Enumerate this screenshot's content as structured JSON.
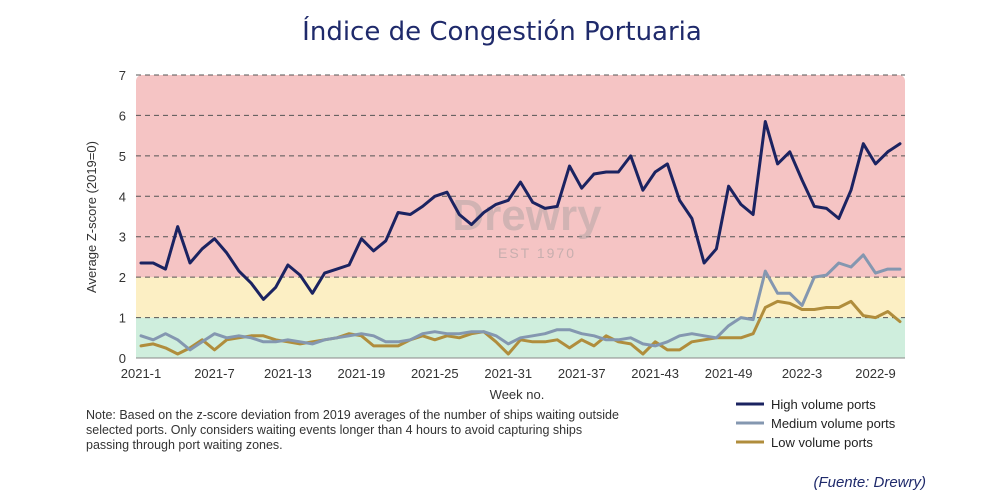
{
  "chart_data": {
    "type": "line",
    "title": "Índice de Congestión Portuaria",
    "xlabel": "Week no.",
    "ylabel": "Average Z-score (2019=0)",
    "ylim": [
      0,
      7
    ],
    "yticks": [
      0,
      1,
      2,
      3,
      4,
      5,
      6,
      7
    ],
    "xticks": [
      {
        "label": "2021-1",
        "index": 0
      },
      {
        "label": "2021-7",
        "index": 6
      },
      {
        "label": "2021-13",
        "index": 12
      },
      {
        "label": "2021-19",
        "index": 18
      },
      {
        "label": "2021-25",
        "index": 24
      },
      {
        "label": "2021-31",
        "index": 30
      },
      {
        "label": "2021-37",
        "index": 36
      },
      {
        "label": "2021-43",
        "index": 42
      },
      {
        "label": "2021-49",
        "index": 48
      },
      {
        "label": "2022-3",
        "index": 54
      },
      {
        "label": "2022-9",
        "index": 60
      }
    ],
    "bands": [
      {
        "from": 0,
        "to": 1,
        "color": "#cfeedd"
      },
      {
        "from": 1,
        "to": 2,
        "color": "#fcefc4"
      },
      {
        "from": 2,
        "to": 7,
        "color": "#f5c4c4"
      }
    ],
    "watermark": {
      "brand": "Drewry",
      "sub": "EST 1970"
    },
    "series": [
      {
        "name": "High volume ports",
        "color": "#1b2361",
        "values": [
          2.35,
          2.35,
          2.2,
          3.25,
          2.35,
          2.7,
          2.95,
          2.6,
          2.15,
          1.85,
          1.45,
          1.75,
          2.3,
          2.05,
          1.6,
          2.1,
          2.2,
          2.3,
          2.95,
          2.65,
          2.9,
          3.6,
          3.55,
          3.75,
          4.0,
          4.1,
          3.55,
          3.3,
          3.6,
          3.8,
          3.9,
          4.35,
          3.85,
          3.7,
          3.75,
          4.75,
          4.2,
          4.55,
          4.6,
          4.6,
          5.0,
          4.15,
          4.6,
          4.8,
          3.9,
          3.45,
          2.35,
          2.7,
          4.25,
          3.8,
          3.55,
          5.85,
          4.8,
          5.1,
          4.4,
          3.75,
          3.7,
          3.45,
          4.15,
          5.3,
          4.8,
          5.1,
          5.3
        ]
      },
      {
        "name": "Medium volume ports",
        "color": "#8497b0",
        "values": [
          0.55,
          0.45,
          0.6,
          0.45,
          0.2,
          0.4,
          0.6,
          0.5,
          0.55,
          0.5,
          0.4,
          0.4,
          0.45,
          0.4,
          0.35,
          0.45,
          0.5,
          0.55,
          0.6,
          0.55,
          0.4,
          0.4,
          0.45,
          0.6,
          0.65,
          0.6,
          0.6,
          0.65,
          0.65,
          0.55,
          0.35,
          0.5,
          0.55,
          0.6,
          0.7,
          0.7,
          0.6,
          0.55,
          0.45,
          0.45,
          0.5,
          0.35,
          0.3,
          0.4,
          0.55,
          0.6,
          0.55,
          0.5,
          0.8,
          1.0,
          0.95,
          2.15,
          1.6,
          1.6,
          1.3,
          2.0,
          2.05,
          2.35,
          2.25,
          2.55,
          2.1,
          2.2,
          2.2
        ]
      },
      {
        "name": "Low volume ports",
        "color": "#b08d3c",
        "values": [
          0.3,
          0.35,
          0.25,
          0.1,
          0.25,
          0.45,
          0.2,
          0.45,
          0.5,
          0.55,
          0.55,
          0.45,
          0.4,
          0.35,
          0.4,
          0.45,
          0.5,
          0.6,
          0.55,
          0.3,
          0.3,
          0.3,
          0.45,
          0.55,
          0.45,
          0.55,
          0.5,
          0.6,
          0.65,
          0.4,
          0.1,
          0.45,
          0.4,
          0.4,
          0.45,
          0.25,
          0.45,
          0.3,
          0.55,
          0.4,
          0.35,
          0.1,
          0.4,
          0.2,
          0.2,
          0.4,
          0.45,
          0.5,
          0.5,
          0.5,
          0.6,
          1.25,
          1.4,
          1.35,
          1.2,
          1.2,
          1.25,
          1.25,
          1.4,
          1.05,
          1.0,
          1.15,
          0.9
        ]
      }
    ],
    "note": "Note: Based on the z-score deviation from 2019 averages of the number of ships waiting outside selected ports. Only considers waiting events longer than 4 hours to avoid capturing ships passing through port waiting zones.",
    "source": "(Fuente: Drewry)"
  }
}
